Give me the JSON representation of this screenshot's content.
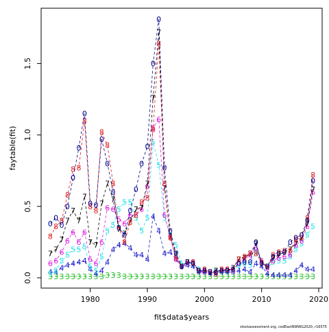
{
  "chart_data": {
    "type": "matplot",
    "xlabel": "fit$data$years",
    "ylabel": "faytable(fit)",
    "footnote": "stockassessment.org, codEastNWWG2020, r16575",
    "xlim": [
      1971.4,
      2020.6
    ],
    "ylim": [
      -0.072,
      1.887
    ],
    "xticks": [
      1980,
      1990,
      2000,
      2010,
      2020
    ],
    "yticks": [
      {
        "value": 0,
        "label": "0.0"
      },
      0.5,
      {
        "value": 1,
        "label": "1.0"
      },
      1.5
    ],
    "x": [
      1973,
      1974,
      1975,
      1976,
      1977,
      1978,
      1979,
      1980,
      1981,
      1982,
      1983,
      1984,
      1985,
      1986,
      1987,
      1988,
      1989,
      1990,
      1991,
      1992,
      1993,
      1994,
      1995,
      1996,
      1997,
      1998,
      1999,
      2000,
      2001,
      2002,
      2003,
      2004,
      2005,
      2006,
      2007,
      2008,
      2009,
      2010,
      2011,
      2012,
      2013,
      2014,
      2015,
      2016,
      2017,
      2018,
      2019
    ],
    "series": [
      {
        "name": "3",
        "color": "#22bb22",
        "values": [
          0.01,
          0.01,
          0.01,
          0.01,
          0.01,
          0.01,
          0.01,
          0.01,
          0.01,
          0.01,
          0.02,
          0.02,
          0.02,
          0.01,
          0.01,
          0.01,
          0.01,
          0.01,
          0.01,
          0.01,
          0.01,
          0.01,
          0.01,
          0.01,
          0.01,
          0.01,
          0.01,
          0.01,
          0.01,
          0.01,
          0.01,
          0.01,
          0.01,
          0.01,
          0.01,
          0.01,
          0.01,
          0.01,
          0.01,
          0.01,
          0.01,
          0.01,
          0.01,
          0.01,
          0.01,
          0.01,
          0.01
        ]
      },
      {
        "name": "4",
        "color": "#1a1acd",
        "values": [
          0.04,
          0.04,
          0.07,
          0.09,
          0.1,
          0.11,
          0.12,
          0.06,
          0.03,
          0.05,
          0.11,
          0.2,
          0.23,
          0.24,
          0.21,
          0.16,
          0.16,
          0.13,
          0.43,
          0.33,
          0.17,
          0.18,
          0.13,
          0.08,
          0.09,
          0.08,
          0.04,
          0.04,
          0.03,
          0.03,
          0.04,
          0.04,
          0.04,
          0.05,
          0.06,
          0.04,
          0.1,
          0.08,
          0.03,
          0.02,
          0.02,
          0.02,
          0.02,
          0.05,
          0.09,
          0.06,
          0.06
        ]
      },
      {
        "name": "5",
        "color": "#22e0e8",
        "values": [
          0.03,
          0.05,
          0.12,
          0.16,
          0.2,
          0.2,
          0.22,
          0.08,
          0.05,
          0.15,
          0.33,
          0.37,
          0.48,
          0.53,
          0.53,
          0.42,
          0.33,
          0.42,
          0.95,
          0.79,
          0.42,
          0.3,
          0.23,
          0.1,
          0.1,
          0.1,
          0.06,
          0.04,
          0.04,
          0.05,
          0.05,
          0.05,
          0.05,
          0.09,
          0.1,
          0.09,
          0.18,
          0.12,
          0.07,
          0.11,
          0.12,
          0.12,
          0.15,
          0.2,
          0.24,
          0.3,
          0.36
        ]
      },
      {
        "name": "6",
        "color": "#e020e0",
        "values": [
          0.1,
          0.12,
          0.18,
          0.26,
          0.32,
          0.25,
          0.32,
          0.13,
          0.1,
          0.25,
          0.49,
          0.48,
          0.41,
          0.38,
          0.44,
          0.44,
          0.48,
          0.64,
          1.05,
          1.11,
          0.44,
          0.29,
          0.13,
          0.08,
          0.1,
          0.11,
          0.05,
          0.04,
          0.04,
          0.04,
          0.05,
          0.06,
          0.05,
          0.11,
          0.13,
          0.16,
          0.21,
          0.12,
          0.07,
          0.12,
          0.14,
          0.15,
          0.16,
          0.23,
          0.26,
          0.36,
          0.6
        ]
      },
      {
        "name": "7",
        "color": "#000000",
        "values": [
          0.17,
          0.2,
          0.27,
          0.4,
          0.47,
          0.4,
          0.57,
          0.25,
          0.23,
          0.52,
          0.66,
          0.55,
          0.34,
          0.31,
          0.4,
          0.48,
          0.49,
          0.66,
          1.26,
          1.72,
          0.63,
          0.29,
          0.17,
          0.08,
          0.11,
          0.1,
          0.05,
          0.05,
          0.04,
          0.05,
          0.05,
          0.05,
          0.07,
          0.13,
          0.14,
          0.17,
          0.24,
          0.1,
          0.08,
          0.14,
          0.16,
          0.18,
          0.2,
          0.24,
          0.28,
          0.38,
          0.62
        ]
      },
      {
        "name": "8",
        "color": "#e02020",
        "values": [
          0.29,
          0.36,
          0.4,
          0.58,
          0.76,
          0.77,
          1.1,
          0.5,
          0.47,
          1.02,
          0.93,
          0.66,
          0.35,
          0.25,
          0.39,
          0.44,
          0.53,
          0.56,
          1.04,
          1.64,
          0.66,
          0.28,
          0.14,
          0.08,
          0.11,
          0.11,
          0.05,
          0.06,
          0.04,
          0.03,
          0.06,
          0.06,
          0.06,
          0.13,
          0.15,
          0.17,
          0.17,
          0.11,
          0.08,
          0.16,
          0.18,
          0.19,
          0.19,
          0.27,
          0.28,
          0.42,
          0.72
        ]
      },
      {
        "name": "0",
        "color": "#00008b",
        "values": [
          0.38,
          0.42,
          0.37,
          0.5,
          0.7,
          0.91,
          1.15,
          0.52,
          0.51,
          0.97,
          0.8,
          0.6,
          0.35,
          0.3,
          0.47,
          0.62,
          0.8,
          0.92,
          1.5,
          1.81,
          0.77,
          0.33,
          0.17,
          0.08,
          0.11,
          0.1,
          0.05,
          0.05,
          0.04,
          0.04,
          0.05,
          0.05,
          0.06,
          0.1,
          0.11,
          0.11,
          0.25,
          0.1,
          0.08,
          0.15,
          0.17,
          0.18,
          0.25,
          0.28,
          0.3,
          0.4,
          0.68
        ]
      }
    ]
  }
}
